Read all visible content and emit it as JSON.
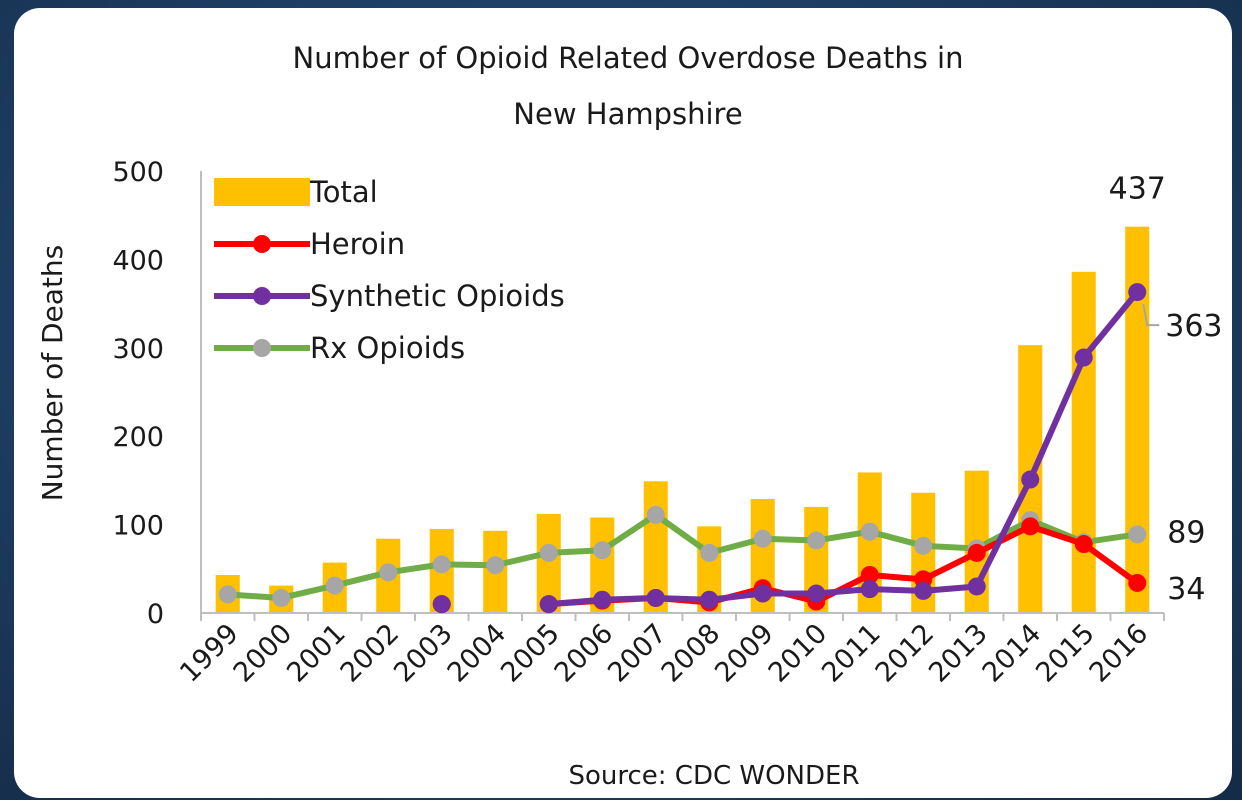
{
  "chart_data": {
    "type": "bar",
    "title": "Number of Opioid Related Overdose Deaths in New Hampshire",
    "title_lines": [
      "Number of Opioid Related Overdose Deaths in",
      "New Hampshire"
    ],
    "ylabel": "Number of Deaths",
    "xlabel": "",
    "source": "Source: CDC WONDER",
    "ylim": [
      0,
      500
    ],
    "yticks": [
      0,
      100,
      200,
      300,
      400,
      500
    ],
    "categories": [
      "1999",
      "2000",
      "2001",
      "2002",
      "2003",
      "2004",
      "2005",
      "2006",
      "2007",
      "2008",
      "2009",
      "2010",
      "2011",
      "2012",
      "2013",
      "2014",
      "2015",
      "2016"
    ],
    "legend_position": "top-left",
    "grid": false,
    "series": [
      {
        "name": "Total",
        "type": "bar",
        "color": "#FFC000",
        "values": [
          43,
          31,
          57,
          84,
          95,
          93,
          112,
          108,
          149,
          98,
          129,
          120,
          159,
          136,
          161,
          303,
          386,
          437
        ]
      },
      {
        "name": "Heroin",
        "type": "line",
        "color": "#FF0000",
        "values": [
          null,
          null,
          null,
          null,
          10,
          null,
          10,
          14,
          17,
          12,
          28,
          13,
          43,
          38,
          68,
          98,
          78,
          34
        ]
      },
      {
        "name": "Synthetic Opioids",
        "type": "line",
        "color": "#7030A0",
        "values": [
          null,
          null,
          null,
          null,
          10,
          null,
          10,
          15,
          17,
          15,
          22,
          22,
          27,
          25,
          30,
          151,
          289,
          363
        ]
      },
      {
        "name": "Rx Opioids",
        "type": "line",
        "color": "#70AD47",
        "marker_color": "#A6A6A6",
        "values": [
          21,
          17,
          31,
          46,
          55,
          54,
          68,
          71,
          111,
          68,
          84,
          82,
          92,
          76,
          73,
          105,
          80,
          89
        ]
      }
    ],
    "data_labels": [
      {
        "series": "Total",
        "category": "2016",
        "text": "437"
      },
      {
        "series": "Synthetic Opioids",
        "category": "2016",
        "text": "363"
      },
      {
        "series": "Rx Opioids",
        "category": "2016",
        "text": "89"
      },
      {
        "series": "Heroin",
        "category": "2016",
        "text": "34"
      }
    ]
  }
}
